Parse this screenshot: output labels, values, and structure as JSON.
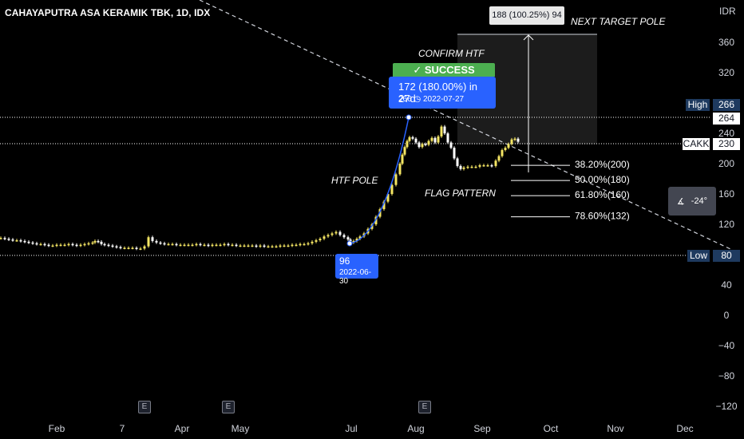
{
  "header": {
    "title": "CAHAYAPUTRA ASA KERAMIK TBK, 1D, IDX",
    "currency": "IDR"
  },
  "chart_data": {
    "type": "candlestick",
    "symbol": "CAKK",
    "ylim": [
      -130,
      390
    ],
    "y_ticks": [
      360,
      320,
      240,
      200,
      160,
      120,
      40,
      0,
      -40,
      -80,
      -120
    ],
    "x_ticks": [
      "Feb",
      "7",
      "Apr",
      "May",
      "Jul",
      "Aug",
      "Sep",
      "Oct",
      "Nov",
      "Dec"
    ],
    "price_series": [
      [
        0,
        102
      ],
      [
        5,
        101
      ],
      [
        10,
        100
      ],
      [
        15,
        99
      ],
      [
        20,
        99
      ],
      [
        25,
        98
      ],
      [
        30,
        97
      ],
      [
        35,
        96
      ],
      [
        40,
        95
      ],
      [
        45,
        94
      ],
      [
        50,
        94
      ],
      [
        55,
        93
      ],
      [
        60,
        92
      ],
      [
        65,
        92
      ],
      [
        70,
        93
      ],
      [
        75,
        93
      ],
      [
        80,
        93
      ],
      [
        85,
        94
      ],
      [
        90,
        93
      ],
      [
        95,
        92
      ],
      [
        100,
        93
      ],
      [
        105,
        94
      ],
      [
        110,
        95
      ],
      [
        115,
        96
      ],
      [
        118,
        98
      ],
      [
        122,
        97
      ],
      [
        126,
        94
      ],
      [
        130,
        93
      ],
      [
        135,
        92
      ],
      [
        140,
        91
      ],
      [
        145,
        90
      ],
      [
        150,
        89
      ],
      [
        155,
        89
      ],
      [
        160,
        89
      ],
      [
        165,
        89
      ],
      [
        170,
        88
      ],
      [
        175,
        88
      ],
      [
        180,
        91
      ],
      [
        185,
        103
      ],
      [
        190,
        98
      ],
      [
        195,
        96
      ],
      [
        200,
        95
      ],
      [
        205,
        94
      ],
      [
        210,
        94
      ],
      [
        215,
        94
      ],
      [
        220,
        93
      ],
      [
        225,
        93
      ],
      [
        230,
        93
      ],
      [
        235,
        93
      ],
      [
        240,
        93
      ],
      [
        245,
        94
      ],
      [
        250,
        93
      ],
      [
        255,
        93
      ],
      [
        260,
        92
      ],
      [
        265,
        93
      ],
      [
        270,
        93
      ],
      [
        275,
        93
      ],
      [
        280,
        94
      ],
      [
        285,
        93
      ],
      [
        290,
        93
      ],
      [
        295,
        92
      ],
      [
        300,
        92
      ],
      [
        305,
        92
      ],
      [
        310,
        92
      ],
      [
        315,
        92
      ],
      [
        320,
        91
      ],
      [
        325,
        92
      ],
      [
        330,
        91
      ],
      [
        335,
        91
      ],
      [
        340,
        91
      ],
      [
        345,
        91
      ],
      [
        350,
        92
      ],
      [
        355,
        92
      ],
      [
        360,
        92
      ],
      [
        365,
        93
      ],
      [
        370,
        93
      ],
      [
        375,
        94
      ],
      [
        380,
        94
      ],
      [
        385,
        95
      ],
      [
        390,
        97
      ],
      [
        395,
        99
      ],
      [
        400,
        101
      ],
      [
        405,
        104
      ],
      [
        410,
        106
      ],
      [
        415,
        108
      ],
      [
        420,
        110
      ],
      [
        425,
        106
      ],
      [
        430,
        103
      ],
      [
        435,
        100
      ],
      [
        438,
        96
      ],
      [
        442,
        98
      ],
      [
        446,
        101
      ],
      [
        450,
        104
      ],
      [
        455,
        108
      ],
      [
        460,
        114
      ],
      [
        465,
        120
      ],
      [
        470,
        130
      ],
      [
        475,
        140
      ],
      [
        480,
        150
      ],
      [
        485,
        160
      ],
      [
        490,
        172
      ],
      [
        495,
        186
      ],
      [
        500,
        200
      ],
      [
        503,
        212
      ],
      [
        506,
        222
      ],
      [
        509,
        230
      ],
      [
        512,
        235
      ],
      [
        516,
        233
      ],
      [
        520,
        228
      ],
      [
        524,
        222
      ],
      [
        528,
        226
      ],
      [
        532,
        225
      ],
      [
        536,
        230
      ],
      [
        540,
        234
      ],
      [
        544,
        228
      ],
      [
        548,
        236
      ],
      [
        552,
        249
      ],
      [
        556,
        240
      ],
      [
        560,
        228
      ],
      [
        564,
        221
      ],
      [
        568,
        207
      ],
      [
        572,
        197
      ],
      [
        576,
        193
      ],
      [
        580,
        195
      ],
      [
        585,
        196
      ],
      [
        590,
        196
      ],
      [
        595,
        196
      ],
      [
        600,
        198
      ],
      [
        605,
        198
      ],
      [
        610,
        198
      ],
      [
        615,
        197
      ],
      [
        620,
        204
      ],
      [
        624,
        210
      ],
      [
        628,
        218
      ],
      [
        632,
        221
      ],
      [
        636,
        226
      ],
      [
        640,
        232
      ],
      [
        644,
        233
      ],
      [
        648,
        229
      ]
    ],
    "high_price": 266,
    "low_price": 80,
    "current_price": 230,
    "labels": {
      "high_label": "High",
      "high_value": "266",
      "high_line_value": "264",
      "low_label": "Low",
      "low_value": "80",
      "current_label": "CAKK",
      "current_value": "230"
    },
    "annotations": {
      "confirm": "CONFIRM HTF",
      "success": "✓ SUCCESS",
      "measure_main": "172 (180.00%) in 27d",
      "measure_sub": "266 ◷ 2022-07-27",
      "low_point_value": "96",
      "low_point_date": "2022-06-30",
      "htf_pole": "HTF POLE",
      "flag_pattern": "FLAG PATTERN",
      "next_target": "NEXT TARGET POLE",
      "target_box": "188 (100.25%) 94",
      "angle": "-24°"
    },
    "fib_levels": [
      {
        "label": "38.20%(200)",
        "value": 200
      },
      {
        "label": "50.00%(180)",
        "value": 180
      },
      {
        "label": "61.80%(160)",
        "value": 160
      },
      {
        "label": "78.60%(132)",
        "value": 132
      }
    ],
    "events": [
      "E",
      "E",
      "E"
    ]
  }
}
